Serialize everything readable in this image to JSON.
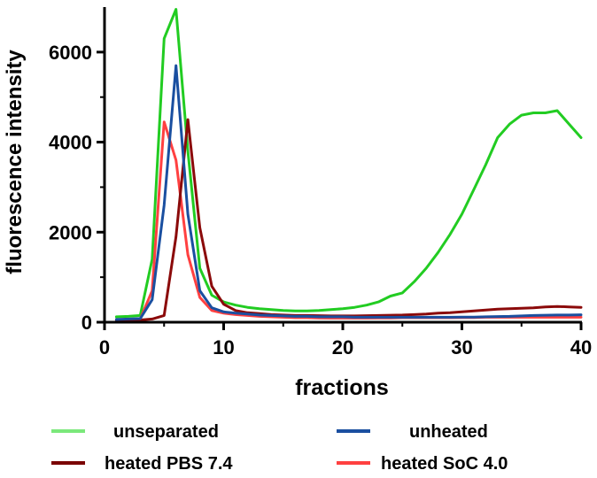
{
  "chart_data": {
    "type": "line",
    "title": "",
    "xlabel": "fractions",
    "ylabel": "fluorescence intensity",
    "xlim": [
      0,
      40
    ],
    "ylim": [
      0,
      7000
    ],
    "x_ticks": [
      0,
      10,
      20,
      30,
      40
    ],
    "y_ticks": [
      0,
      2000,
      4000,
      6000
    ],
    "grid": false,
    "legend_position": "bottom",
    "x": [
      1,
      2,
      3,
      4,
      5,
      6,
      7,
      8,
      9,
      10,
      11,
      12,
      13,
      14,
      15,
      16,
      17,
      18,
      19,
      20,
      21,
      22,
      23,
      24,
      25,
      26,
      27,
      28,
      29,
      30,
      31,
      32,
      33,
      34,
      35,
      36,
      37,
      38,
      39,
      40
    ],
    "series": [
      {
        "name": "unseparated",
        "color": "#22cc22",
        "legend_color": "#7be87b",
        "values": [
          120,
          130,
          150,
          1400,
          6300,
          6950,
          3800,
          1200,
          600,
          450,
          380,
          330,
          300,
          280,
          260,
          250,
          250,
          260,
          280,
          300,
          330,
          380,
          450,
          580,
          650,
          900,
          1200,
          1550,
          1950,
          2400,
          2950,
          3500,
          4100,
          4400,
          4600,
          4650,
          4650,
          4700,
          4400,
          4100
        ]
      },
      {
        "name": "unheated",
        "color": "#1a4fa0",
        "legend_color": "#1a4fa0",
        "values": [
          60,
          70,
          80,
          500,
          2600,
          5700,
          2400,
          700,
          320,
          230,
          200,
          180,
          160,
          150,
          140,
          130,
          130,
          120,
          120,
          120,
          110,
          110,
          110,
          110,
          110,
          110,
          110,
          110,
          110,
          115,
          115,
          120,
          125,
          130,
          140,
          150,
          155,
          160,
          160,
          165
        ]
      },
      {
        "name": "heated PBS 7.4",
        "color": "#8b0a0a",
        "legend_color": "#7a0000",
        "values": [
          40,
          45,
          50,
          70,
          150,
          1900,
          4500,
          2100,
          800,
          400,
          260,
          210,
          190,
          170,
          160,
          150,
          150,
          145,
          140,
          140,
          140,
          145,
          150,
          155,
          160,
          170,
          180,
          200,
          210,
          230,
          250,
          270,
          290,
          300,
          310,
          320,
          340,
          350,
          340,
          330
        ]
      },
      {
        "name": "heated SoC 4.0",
        "color": "#ff4040",
        "legend_color": "#ff4040",
        "values": [
          50,
          60,
          70,
          700,
          4450,
          3600,
          1500,
          550,
          260,
          200,
          170,
          150,
          130,
          120,
          110,
          100,
          100,
          95,
          90,
          90,
          90,
          90,
          95,
          95,
          100,
          100,
          100,
          100,
          100,
          105,
          105,
          110,
          110,
          110,
          110,
          110,
          110,
          110,
          110,
          110
        ]
      }
    ]
  }
}
